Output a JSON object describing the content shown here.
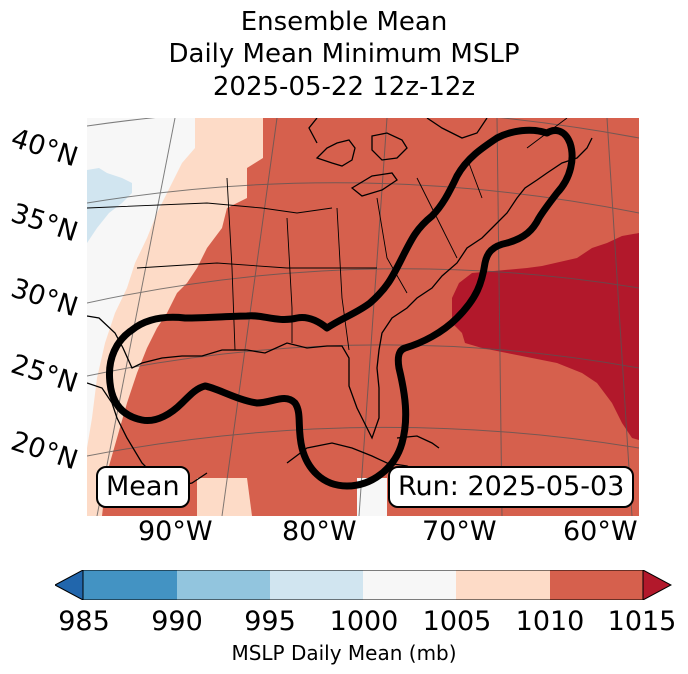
{
  "title": {
    "line1": "Ensemble Mean",
    "line2": "Daily Mean Minimum MSLP",
    "line3": "2025-05-22 12z-12z"
  },
  "map": {
    "lat_labels": [
      "40°N",
      "35°N",
      "30°N",
      "25°N",
      "20°N"
    ],
    "lon_labels": [
      "90°W",
      "80°W",
      "70°W",
      "60°W"
    ],
    "mean_box": "Mean",
    "run_box": "Run: 2025-05-03",
    "colors": {
      "985": "#2166ac",
      "985-990": "#4393c3",
      "990-995": "#92c5de",
      "995-1000": "#d1e5f0",
      "1000-1005": "#f7f7f7",
      "1005-1010": "#fddbc7",
      "1010-1015": "#d6604d",
      "1015+": "#b2182b"
    }
  },
  "colorbar": {
    "ticks": [
      "985",
      "990",
      "995",
      "1000",
      "1005",
      "1010",
      "1015"
    ],
    "label": "MSLP Daily Mean (mb)"
  }
}
